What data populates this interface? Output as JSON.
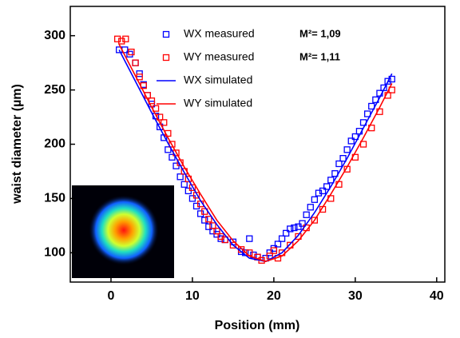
{
  "chart_data": {
    "type": "scatter",
    "x_label": "Position (mm)",
    "y_label": "waist diameter (µm)",
    "xlim": [
      -5,
      41
    ],
    "ylim": [
      73,
      327
    ],
    "xticks": [
      0,
      10,
      20,
      30,
      40
    ],
    "yticks": [
      100,
      150,
      200,
      250,
      300
    ],
    "legend": "top-center",
    "annotations": [
      "M²= 1,09",
      "M²= 1,11"
    ],
    "series": [
      {
        "name": "WX measured",
        "type": "scatter",
        "color": "#0000ff",
        "x": [
          1,
          1.7,
          2.3,
          3,
          3.5,
          4,
          4.5,
          5,
          5.5,
          6,
          6.5,
          7,
          7.5,
          8,
          8.5,
          9,
          9.5,
          10,
          10.5,
          11,
          11.5,
          12,
          12.5,
          13,
          13.5,
          14,
          15,
          16,
          16.5,
          17,
          17.5,
          18,
          19,
          19.5,
          20,
          20.5,
          21,
          21.5,
          22,
          22.5,
          23,
          23.5,
          24,
          24.5,
          25,
          25.5,
          26,
          26.5,
          27,
          27.5,
          28,
          28.5,
          29,
          29.5,
          30,
          30.5,
          31,
          31.5,
          32,
          32.5,
          33,
          33.5,
          34,
          34.5
        ],
        "values": [
          287,
          287,
          283,
          275,
          265,
          255,
          245,
          237,
          226,
          216,
          206,
          195,
          188,
          180,
          170,
          163,
          157,
          150,
          143,
          136,
          130,
          124,
          120,
          117,
          113,
          112,
          110,
          101,
          100,
          113,
          98,
          96,
          95,
          100,
          104,
          108,
          113,
          118,
          122,
          123,
          124,
          127,
          135,
          142,
          149,
          155,
          157,
          161,
          167,
          173,
          182,
          187,
          195,
          203,
          207,
          212,
          220,
          228,
          235,
          241,
          247,
          252,
          258,
          260
        ]
      },
      {
        "name": "WY measured",
        "type": "scatter",
        "color": "#ff0000",
        "x": [
          0.8,
          1.3,
          1.8,
          2.5,
          3,
          3.5,
          4,
          4.5,
          5,
          5.5,
          6,
          6.5,
          7,
          7.5,
          8,
          8.5,
          9,
          9.5,
          10,
          10.5,
          11,
          11.5,
          12,
          12.5,
          13,
          13.5,
          14,
          15,
          16,
          17,
          18,
          18.5,
          19.5,
          20,
          20.5,
          21,
          22,
          23,
          24,
          25,
          26,
          27,
          28,
          29,
          30,
          31,
          32,
          33,
          34,
          34.5
        ],
        "values": [
          297,
          295,
          297,
          285,
          275,
          262,
          254,
          245,
          240,
          233,
          225,
          220,
          210,
          200,
          192,
          183,
          175,
          168,
          160,
          153,
          145,
          138,
          131,
          125,
          120,
          115,
          112,
          107,
          103,
          100,
          96,
          93,
          97,
          102,
          95,
          100,
          107,
          115,
          123,
          130,
          140,
          150,
          163,
          177,
          188,
          200,
          215,
          230,
          245,
          250
        ]
      },
      {
        "name": "WX simulated",
        "type": "line",
        "color": "#0000ff",
        "x": [
          1,
          3,
          5,
          7,
          9,
          11,
          13,
          15,
          17,
          19,
          21,
          23,
          25,
          27,
          29,
          31,
          33,
          34.5
        ],
        "values": [
          287,
          258,
          229,
          201,
          174,
          148,
          126,
          107,
          95,
          92,
          100,
          116,
          137,
          161,
          187,
          215,
          243,
          265
        ]
      },
      {
        "name": "WY simulated",
        "type": "line",
        "color": "#ff0000",
        "x": [
          1,
          3,
          5,
          7,
          9,
          11,
          13,
          15,
          17,
          19,
          21,
          23,
          25,
          27,
          29,
          31,
          33,
          34.5
        ],
        "values": [
          292,
          263,
          234,
          206,
          179,
          154,
          130,
          111,
          97,
          92,
          97,
          111,
          130,
          154,
          179,
          206,
          234,
          256
        ]
      }
    ]
  }
}
